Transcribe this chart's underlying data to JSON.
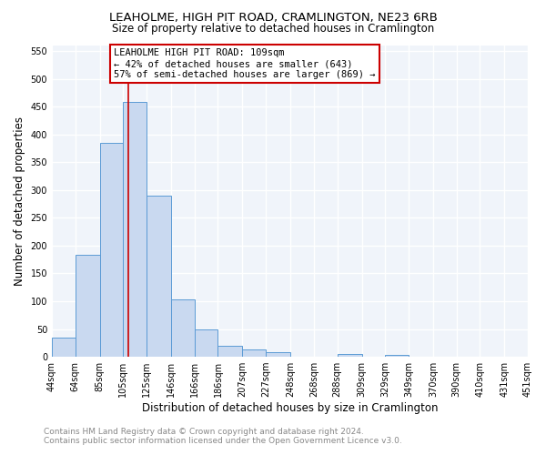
{
  "title": "LEAHOLME, HIGH PIT ROAD, CRAMLINGTON, NE23 6RB",
  "subtitle": "Size of property relative to detached houses in Cramlington",
  "xlabel": "Distribution of detached houses by size in Cramlington",
  "ylabel": "Number of detached properties",
  "all_bin_edges": [
    44,
    64,
    85,
    105,
    125,
    146,
    166,
    186,
    207,
    227,
    248,
    268,
    288,
    309,
    329,
    349,
    370,
    390,
    410,
    431,
    451
  ],
  "all_bar_values": [
    35,
    183,
    385,
    458,
    290,
    104,
    49,
    20,
    13,
    8,
    0,
    0,
    5,
    0,
    3,
    0,
    0,
    0,
    0,
    0
  ],
  "x_tick_labels": [
    "44sqm",
    "64sqm",
    "85sqm",
    "105sqm",
    "125sqm",
    "146sqm",
    "166sqm",
    "186sqm",
    "207sqm",
    "227sqm",
    "248sqm",
    "268sqm",
    "288sqm",
    "309sqm",
    "329sqm",
    "349sqm",
    "370sqm",
    "390sqm",
    "410sqm",
    "431sqm",
    "451sqm"
  ],
  "bar_color": "#c9d9f0",
  "bar_edge_color": "#5b9bd5",
  "vline_x": 109,
  "vline_color": "#cc0000",
  "ylim": [
    0,
    560
  ],
  "yticks": [
    0,
    50,
    100,
    150,
    200,
    250,
    300,
    350,
    400,
    450,
    500,
    550
  ],
  "annotation_box_text": "LEAHOLME HIGH PIT ROAD: 109sqm\n← 42% of detached houses are smaller (643)\n57% of semi-detached houses are larger (869) →",
  "annotation_box_color": "#cc0000",
  "footer_line1": "Contains HM Land Registry data © Crown copyright and database right 2024.",
  "footer_line2": "Contains public sector information licensed under the Open Government Licence v3.0.",
  "background_color": "#ffffff",
  "plot_bg_color": "#f0f4fa",
  "grid_color": "#ffffff",
  "title_fontsize": 9.5,
  "subtitle_fontsize": 8.5,
  "axis_label_fontsize": 8.5,
  "tick_fontsize": 7,
  "footer_fontsize": 6.5,
  "ann_fontsize": 7.5
}
